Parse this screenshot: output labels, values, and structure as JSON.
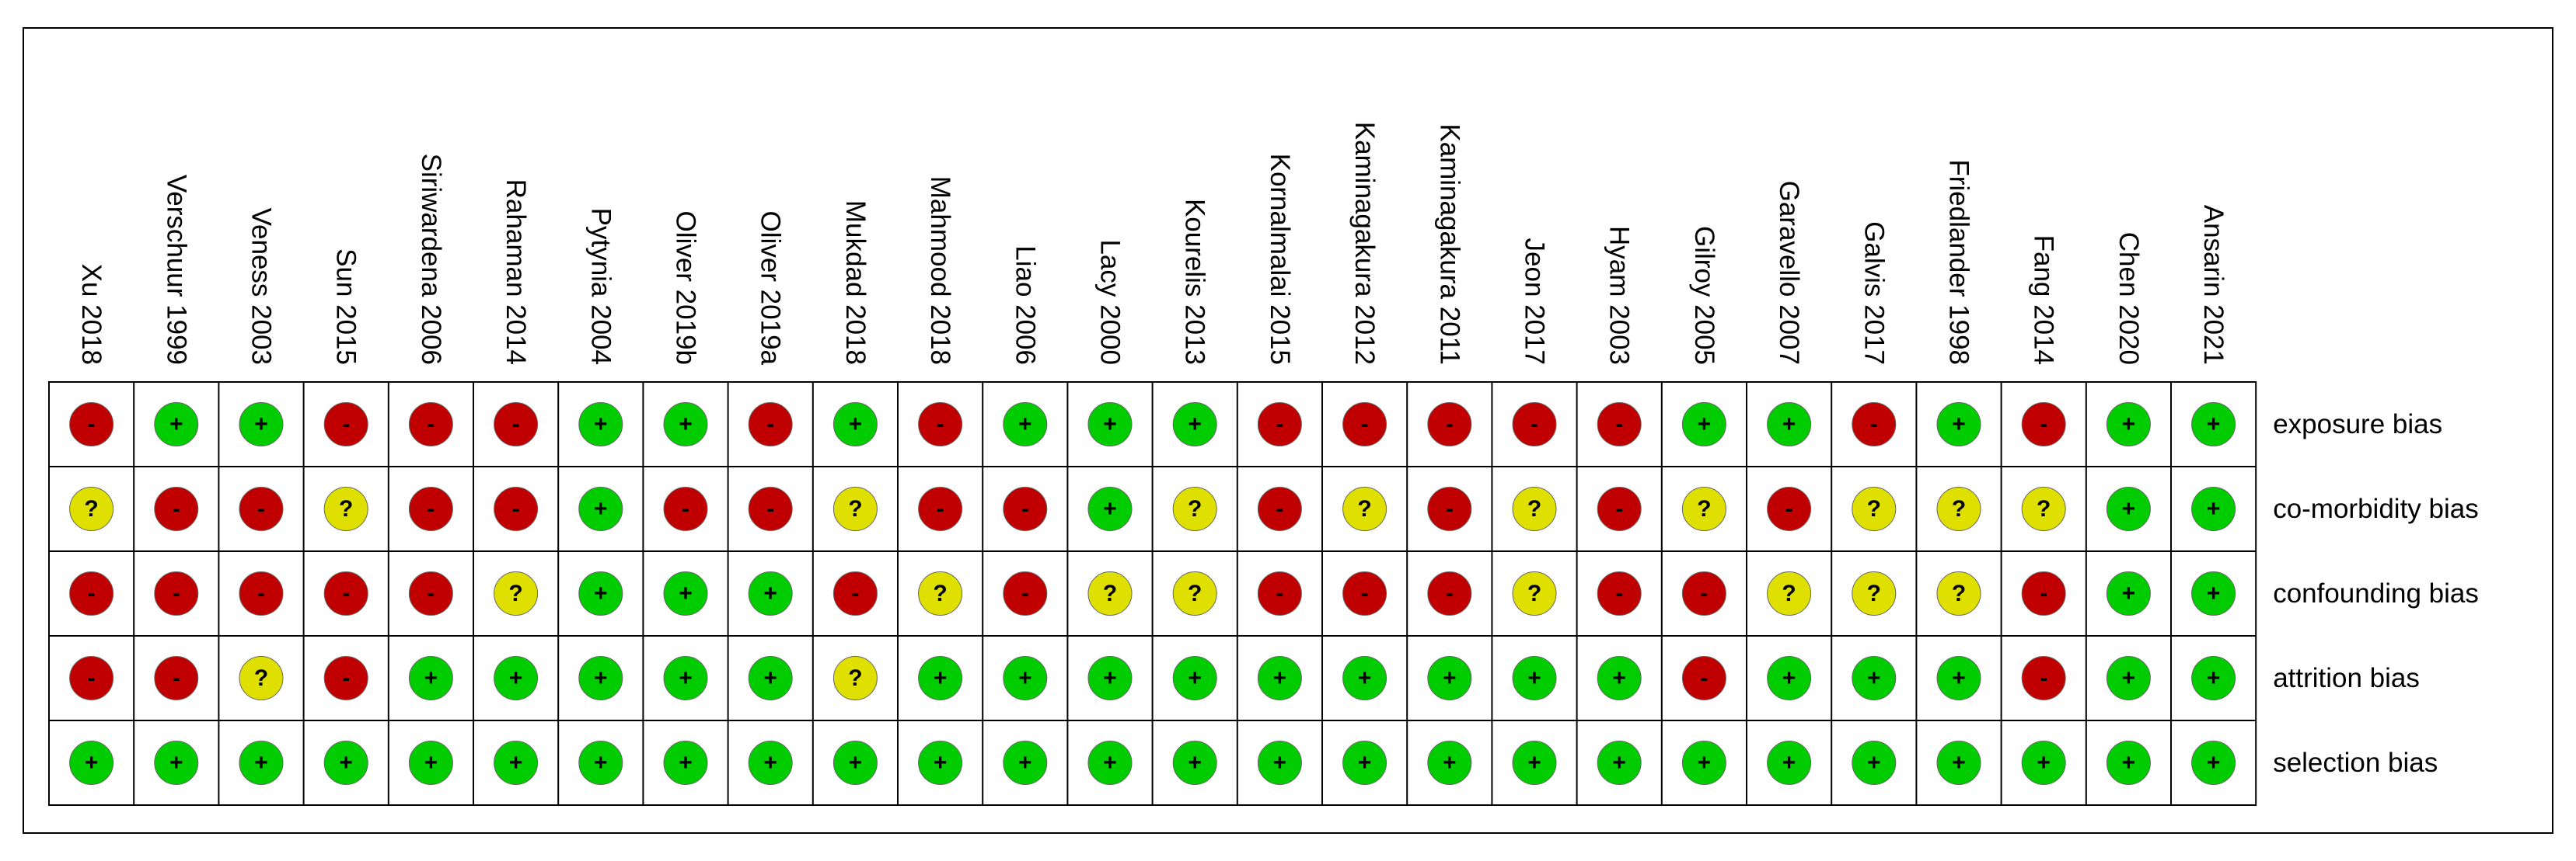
{
  "studies": [
    "Xu 2018",
    "Verschuur 1999",
    "Veness 2003",
    "Sun 2015",
    "Siriwardena 2006",
    "Rahaman 2014",
    "Pytynia 2004",
    "Oliver 2019b",
    "Oliver 2019a",
    "Mukdad 2018",
    "Mahmood 2018",
    "Liao 2006",
    "Lacy 2000",
    "Kourelis 2013",
    "Kornalmalai 2015",
    "Kaminagakura 2012",
    "Kaminagakura 2011",
    "Jeon 2017",
    "Hyam 2003",
    "Gilroy 2005",
    "Garavello 2007",
    "Galvis 2017",
    "Friedlander 1998",
    "Fang 2014",
    "Chen 2020",
    "Ansarin 2021"
  ],
  "domains": [
    "exposure bias",
    "co-morbidity bias",
    "confounding bias",
    "attrition bias",
    "selection bias"
  ],
  "judgments": [
    [
      "-",
      "+",
      "+",
      "-",
      "-",
      "-",
      "+",
      "+",
      "-",
      "+",
      "-",
      "+",
      "+",
      "+",
      "-",
      "-",
      "-",
      "-",
      "-",
      "+",
      "+",
      "-",
      "+",
      "-",
      "+",
      "+"
    ],
    [
      "?",
      "-",
      "-",
      "?",
      "-",
      "-",
      "+",
      "-",
      "-",
      "?",
      "-",
      "-",
      "+",
      "?",
      "-",
      "?",
      "-",
      "?",
      "-",
      "?",
      "-",
      "?",
      "?",
      "?",
      "+",
      "+"
    ],
    [
      "-",
      "-",
      "-",
      "-",
      "-",
      "?",
      "+",
      "+",
      "+",
      "-",
      "?",
      "-",
      "?",
      "?",
      "-",
      "-",
      "-",
      "?",
      "-",
      "-",
      "?",
      "?",
      "?",
      "-",
      "+",
      "+"
    ],
    [
      "-",
      "-",
      "?",
      "-",
      "+",
      "+",
      "+",
      "+",
      "+",
      "?",
      "+",
      "+",
      "+",
      "+",
      "+",
      "+",
      "+",
      "+",
      "+",
      "-",
      "+",
      "+",
      "+",
      "-",
      "+",
      "+"
    ],
    [
      "+",
      "+",
      "+",
      "+",
      "+",
      "+",
      "+",
      "+",
      "+",
      "+",
      "+",
      "+",
      "+",
      "+",
      "+",
      "+",
      "+",
      "+",
      "+",
      "+",
      "+",
      "+",
      "+",
      "+",
      "+",
      "+"
    ]
  ],
  "judgment_colors": {
    "+": "#00cc00",
    "-": "#c00000",
    "?": "#e0e000"
  }
}
